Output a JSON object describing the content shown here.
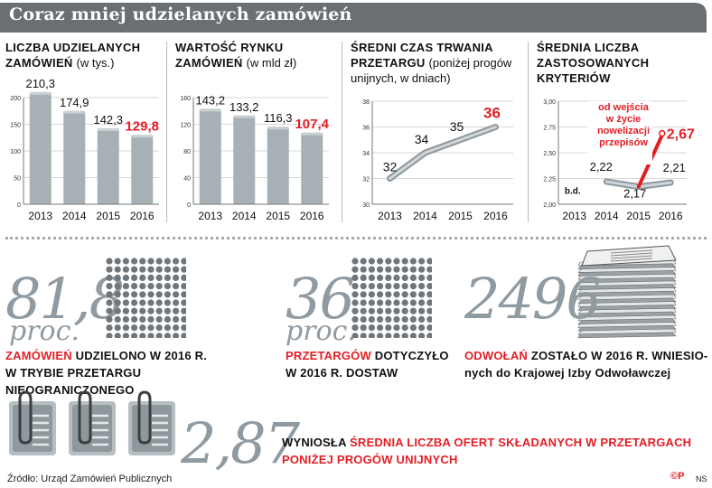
{
  "title": "Coraz mniej udzielanych zamówień",
  "chart_data": [
    {
      "type": "bar",
      "title": "Liczba udzielanych zamówień",
      "subtitle": "(w tys.)",
      "categories": [
        "2013",
        "2014",
        "2015",
        "2016"
      ],
      "values": [
        210.3,
        174.9,
        142.3,
        129.8
      ],
      "value_labels": [
        "210,3",
        "174,9",
        "142,3",
        "129,8"
      ],
      "highlight_index": 3,
      "ylim": [
        0,
        200
      ],
      "yticks": [
        "0",
        "50",
        "100",
        "150",
        "200"
      ]
    },
    {
      "type": "bar",
      "title": "Wartość rynku zamówień",
      "subtitle": "(w mld zł)",
      "categories": [
        "2013",
        "2014",
        "2015",
        "2016"
      ],
      "values": [
        143.2,
        133.2,
        116.3,
        107.4
      ],
      "value_labels": [
        "143,2",
        "133,2",
        "116,3",
        "107,4"
      ],
      "highlight_index": 3,
      "ylim": [
        0,
        160
      ],
      "yticks": [
        "0",
        "40",
        "80",
        "120",
        "160"
      ]
    },
    {
      "type": "line",
      "title": "Średni czas trwania przetargu",
      "subtitle": "(poniżej progów unijnych, w dniach)",
      "categories": [
        "2013",
        "2014",
        "2015",
        "2016"
      ],
      "values": [
        32,
        34,
        35,
        36
      ],
      "value_labels": [
        "32",
        "34",
        "35",
        "36"
      ],
      "highlight_index": 3,
      "ylim": [
        30,
        38
      ],
      "yticks": [
        "30",
        "32",
        "34",
        "36",
        "38"
      ]
    },
    {
      "type": "line",
      "title": "Średnia liczba zastosowanych kryteriów",
      "categories": [
        "2013",
        "2014",
        "2015",
        "2016"
      ],
      "values": [
        null,
        2.22,
        2.17,
        2.21
      ],
      "value_labels": [
        "b.d.",
        "2,22",
        "2,17",
        "2,21"
      ],
      "highlight_value": 2.67,
      "highlight_label": "2,67",
      "annotation": [
        "od wejścia",
        "w życie",
        "nowelizacji",
        "przepisów"
      ],
      "ylim": [
        2.0,
        3.0
      ],
      "yticks": [
        "2,00",
        "2,25",
        "2,50",
        "2,75",
        "3,00"
      ]
    }
  ],
  "stats": {
    "s1": {
      "number": "81,8",
      "unit": "proc.",
      "red": "Zamówień",
      "line1": "udzielono w 2016 r.",
      "line2": "w trybie przetargu nieograniczonego"
    },
    "s2": {
      "number": "36",
      "unit": "proc.",
      "red": "przetargów",
      "line1": "dotyczyło",
      "line2": "w 2016 r. dostaw"
    },
    "s3": {
      "number": "2496",
      "red": "odwołań",
      "line1": "zostało w 2016 r. wniesio-",
      "line2": "nych do Krajowej Izby Odwoławczej"
    },
    "s4": {
      "number": "2,87",
      "pre": "wyniosła",
      "red1": "średnia liczba ofert składanych w przetargach",
      "red2": "poniżej progów unijnych"
    }
  },
  "source": "Źródło: Urząd Zamówień Publicznych",
  "logo": "©P",
  "author": "NS",
  "colors": {
    "accent": "#e31e24",
    "bar": "#a7b0b5",
    "title_bar": "#6b6f71",
    "number_grey": "#8f9aa1"
  }
}
